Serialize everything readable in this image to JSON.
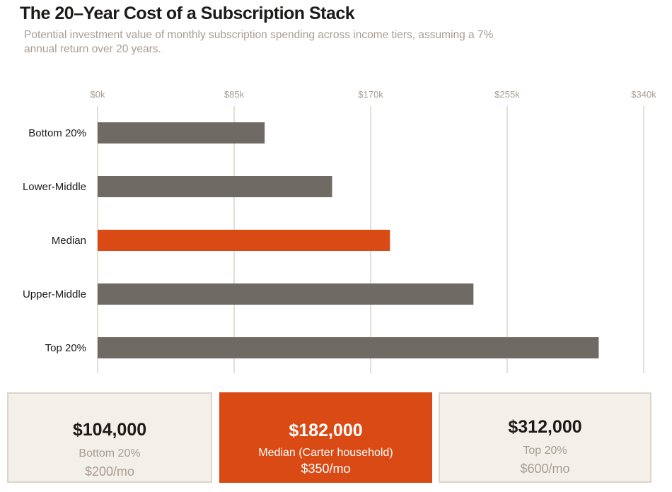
{
  "header": {
    "title": "The 20–Year Cost of a Subscription Stack",
    "subtitle": "Potential investment value of monthly subscription spending across income tiers, assuming a 7% annual return over 20 years."
  },
  "chart_data": {
    "type": "bar",
    "orientation": "horizontal",
    "categories": [
      "Bottom 20%",
      "Lower-Middle",
      "Median",
      "Upper-Middle",
      "Top 20%"
    ],
    "values": [
      104000,
      146000,
      182000,
      234000,
      312000
    ],
    "highlight": "Median",
    "xlim": [
      0,
      340000
    ],
    "xticks": [
      0,
      85000,
      170000,
      255000,
      340000
    ],
    "xtick_labels": [
      "$0k",
      "$85k",
      "$170k",
      "$255k",
      "$340k"
    ],
    "grid": true,
    "colors": {
      "bar": "#6f6a64",
      "highlight": "#d94a14",
      "grid": "#ddd3c8"
    }
  },
  "cards": [
    {
      "value": "$104,000",
      "label": "Bottom 20%",
      "monthly": "$200/mo"
    },
    {
      "value": "$182,000",
      "label": "Median (Carter household)",
      "monthly": "$350/mo"
    },
    {
      "value": "$312,000",
      "label": "Top 20%",
      "monthly": "$600/mo"
    }
  ]
}
